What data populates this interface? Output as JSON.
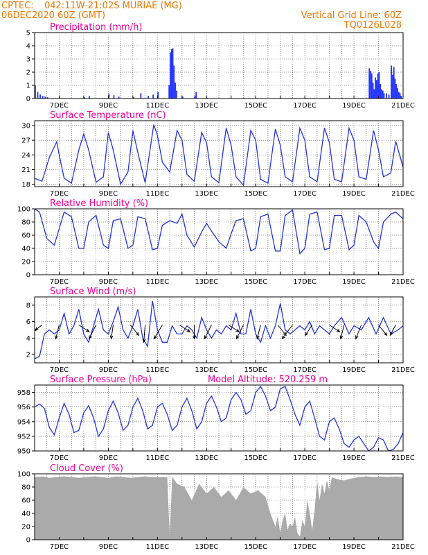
{
  "header": {
    "source": "CPTEC:",
    "location": "042:11W-21:02S   MURIAE (MG)",
    "init_time": "06DEC2020 60Z (GMT)",
    "grid_note": "Vertical Grid Line: 60Z",
    "model": "TQ0126L028"
  },
  "colors": {
    "header_text": "#ee7700",
    "panel_title": "#ee0099",
    "series_line": "#2233dd",
    "bar_fill": "#2233ff",
    "cloud_fill": "#aaaaaa",
    "wind_arrow": "#000000"
  },
  "x_tick_labels": [
    "7DEC",
    "9DEC",
    "11DEC",
    "13DEC",
    "15DEC",
    "17DEC",
    "19DEC",
    "21DEC"
  ],
  "chart_data": [
    {
      "id": "precip",
      "type": "bar",
      "title": "Precipitation  (mm/h)",
      "x_unit": "day of December 2020",
      "xlim": [
        6.0,
        21.0
      ],
      "ylim": [
        0,
        5
      ],
      "yticks": [
        0,
        1,
        2,
        3,
        4,
        5
      ],
      "grid": true,
      "x": [
        6.0,
        6.1,
        6.2,
        6.3,
        6.4,
        6.5,
        8.0,
        8.2,
        9.0,
        9.2,
        9.4,
        10.0,
        10.3,
        10.6,
        10.8,
        11.0,
        11.45,
        11.5,
        11.55,
        11.6,
        11.65,
        11.7,
        11.75,
        12.0,
        12.5,
        12.55,
        13.0,
        14.5,
        16.0,
        17.0,
        18.5,
        19.6,
        19.65,
        19.7,
        19.75,
        19.8,
        19.85,
        19.9,
        19.95,
        20.0,
        20.05,
        20.1,
        20.15,
        20.2,
        20.3,
        20.4,
        20.5,
        20.55,
        20.6,
        20.65,
        20.7,
        20.75,
        20.8,
        20.85,
        20.9
      ],
      "values": [
        1.0,
        0.5,
        0.3,
        0.2,
        0.15,
        0.1,
        0.1,
        0.2,
        0.35,
        0.25,
        0.15,
        0.1,
        0.4,
        0.2,
        0.3,
        0.5,
        1.0,
        3.5,
        3.75,
        3.8,
        2.5,
        1.2,
        0.6,
        0.15,
        0.2,
        0.5,
        0.05,
        0.05,
        0.05,
        0.05,
        0.05,
        2.3,
        2.1,
        1.9,
        1.2,
        0.7,
        1.6,
        1.4,
        1.9,
        2.0,
        1.1,
        0.7,
        0.6,
        0.4,
        0.4,
        0.3,
        2.5,
        1.8,
        2.4,
        1.5,
        1.1,
        0.8,
        0.5,
        0.4,
        0.2
      ]
    },
    {
      "id": "temperature",
      "type": "line",
      "title": "Surface Temperature (nC)",
      "x_unit": "day of December 2020",
      "xlim": [
        6.0,
        21.0
      ],
      "ylim": [
        17.5,
        31
      ],
      "yticks": [
        18,
        21,
        24,
        27,
        30
      ],
      "grid": true,
      "x": [
        6.0,
        6.3,
        6.6,
        6.9,
        7.0,
        7.2,
        7.5,
        7.8,
        8.0,
        8.2,
        8.5,
        8.8,
        9.0,
        9.2,
        9.5,
        9.8,
        10.0,
        10.2,
        10.5,
        10.85,
        11.0,
        11.2,
        11.5,
        11.8,
        12.0,
        12.2,
        12.5,
        12.8,
        13.0,
        13.2,
        13.5,
        13.8,
        14.0,
        14.2,
        14.5,
        14.8,
        15.0,
        15.2,
        15.5,
        15.8,
        16.0,
        16.2,
        16.5,
        16.8,
        17.0,
        17.2,
        17.5,
        17.8,
        18.0,
        18.2,
        18.5,
        18.8,
        19.0,
        19.2,
        19.5,
        19.8,
        20.0,
        20.2,
        20.5,
        20.7,
        21.0
      ],
      "values": [
        19.2,
        18.6,
        23.5,
        26.7,
        24,
        19.2,
        18.2,
        25,
        28.3,
        25,
        18.4,
        19.5,
        28.6,
        25,
        18,
        20.5,
        29,
        24.5,
        18.3,
        30.2,
        28,
        22.5,
        20.5,
        29,
        27,
        20,
        18.6,
        28.6,
        26.5,
        19.5,
        18.3,
        29.5,
        26,
        19.5,
        17.8,
        29,
        27,
        19,
        18.2,
        29.3,
        26,
        19.5,
        18.5,
        29.5,
        27,
        19.5,
        18.5,
        29.5,
        26.5,
        19,
        18.5,
        29.5,
        27,
        19.5,
        19,
        29,
        25,
        19.5,
        20.3,
        26.8,
        21.5
      ]
    },
    {
      "id": "humidity",
      "type": "line",
      "title": "Relative Humidity (%)",
      "x_unit": "day of December 2020",
      "xlim": [
        6.0,
        21.0
      ],
      "ylim": [
        0,
        100
      ],
      "yticks": [
        0,
        20,
        40,
        60,
        80,
        100
      ],
      "grid": true,
      "x": [
        6.0,
        6.2,
        6.5,
        6.8,
        7.0,
        7.2,
        7.5,
        7.8,
        8.0,
        8.2,
        8.5,
        8.8,
        9.0,
        9.2,
        9.5,
        9.8,
        10.0,
        10.2,
        10.5,
        10.8,
        11.0,
        11.2,
        11.5,
        11.8,
        12.0,
        12.2,
        12.5,
        12.8,
        13.0,
        13.2,
        13.5,
        13.8,
        14.0,
        14.2,
        14.5,
        14.8,
        15.0,
        15.2,
        15.5,
        15.8,
        16.0,
        16.2,
        16.5,
        16.8,
        17.0,
        17.2,
        17.5,
        17.8,
        18.0,
        18.2,
        18.5,
        18.8,
        19.0,
        19.2,
        19.5,
        19.8,
        20.0,
        20.2,
        20.5,
        20.7,
        21.0
      ],
      "values": [
        100,
        95,
        55,
        45,
        70,
        95,
        88,
        40,
        40,
        80,
        90,
        45,
        40,
        82,
        85,
        40,
        45,
        88,
        85,
        38,
        40,
        75,
        82,
        78,
        92,
        60,
        42,
        65,
        78,
        66,
        50,
        40,
        62,
        82,
        85,
        36,
        40,
        88,
        92,
        36,
        36,
        90,
        98,
        32,
        40,
        92,
        95,
        38,
        40,
        90,
        90,
        38,
        45,
        90,
        80,
        50,
        40,
        80,
        92,
        95,
        85
      ]
    },
    {
      "id": "wind",
      "type": "line",
      "title": "Surface Wind  (m/s)",
      "x_unit": "day of December 2020",
      "xlim": [
        6.0,
        21.0
      ],
      "ylim": [
        1,
        9
      ],
      "yticks": [
        2,
        4,
        6,
        8
      ],
      "grid": true,
      "x": [
        6.0,
        6.2,
        6.4,
        6.6,
        6.8,
        7.0,
        7.2,
        7.4,
        7.6,
        7.8,
        8.0,
        8.2,
        8.4,
        8.6,
        8.8,
        9.0,
        9.2,
        9.4,
        9.6,
        9.8,
        10.0,
        10.2,
        10.4,
        10.6,
        10.8,
        11.0,
        11.2,
        11.4,
        11.6,
        11.8,
        12.0,
        12.2,
        12.4,
        12.6,
        12.8,
        13.0,
        13.2,
        13.4,
        13.6,
        13.8,
        14.0,
        14.2,
        14.4,
        14.6,
        14.8,
        15.0,
        15.2,
        15.4,
        15.6,
        15.8,
        16.0,
        16.2,
        16.4,
        16.6,
        16.8,
        17.0,
        17.2,
        17.4,
        17.6,
        17.8,
        18.0,
        18.2,
        18.5,
        18.8,
        19.0,
        19.3,
        19.6,
        19.9,
        20.2,
        20.5,
        20.8,
        21.0
      ],
      "values": [
        1.5,
        1.8,
        4.5,
        5.0,
        4.5,
        5.0,
        7.0,
        4.5,
        5.5,
        7.5,
        4.5,
        3.5,
        5.5,
        7.5,
        5.0,
        4.5,
        6.0,
        7.8,
        5.0,
        4.0,
        5.5,
        7.5,
        4.0,
        3.0,
        8.5,
        5.0,
        3.5,
        3.5,
        5.5,
        4.5,
        4.5,
        5.5,
        5.0,
        4.0,
        6.5,
        5.0,
        4.0,
        5.0,
        4.5,
        5.5,
        5.0,
        7.0,
        4.5,
        4.5,
        7.5,
        4.5,
        3.5,
        5.5,
        4.0,
        5.5,
        8.2,
        5.0,
        4.5,
        5.0,
        5.5,
        5.0,
        6.0,
        4.5,
        5.5,
        5.0,
        4.5,
        5.5,
        6.5,
        4.5,
        5.5,
        5.0,
        6.5,
        4.5,
        6.5,
        4.5,
        5.0,
        5.5
      ],
      "arrows_x": [
        6.3,
        7.0,
        7.8,
        8.5,
        9.2,
        9.9,
        10.5,
        11.2,
        11.9,
        12.5,
        13.2,
        13.9,
        14.5,
        15.2,
        15.9,
        16.5,
        17.3,
        18.0,
        18.6,
        19.3,
        20.0,
        20.7
      ],
      "arrows_u": [
        -1.0,
        -0.5,
        1.5,
        -1.0,
        -0.3,
        1.2,
        -0.2,
        -1.2,
        1.5,
        0.0,
        -1.0,
        1.5,
        -1.0,
        -0.5,
        1.2,
        -1.5,
        -1.0,
        1.5,
        -0.5,
        -0.8,
        1.2,
        -0.8
      ],
      "arrows_v": [
        -0.8,
        -2.0,
        -1.0,
        -2.0,
        -2.0,
        -1.5,
        -2.5,
        -2.0,
        -1.0,
        -2.0,
        -2.0,
        -1.0,
        -2.0,
        -2.0,
        -1.5,
        -2.0,
        -1.5,
        -1.0,
        -2.0,
        -2.0,
        -1.5,
        -1.5
      ]
    },
    {
      "id": "pressure",
      "type": "line",
      "title": "Surface Pressure (hPa)",
      "annotation": "Model Altitude: 520.259  m",
      "x_unit": "day of December 2020",
      "xlim": [
        6.0,
        21.0
      ],
      "ylim": [
        950,
        959
      ],
      "yticks": [
        950,
        952,
        954,
        956,
        958
      ],
      "grid": true,
      "x": [
        6.0,
        6.2,
        6.4,
        6.6,
        6.8,
        7.0,
        7.2,
        7.4,
        7.6,
        7.8,
        8.0,
        8.2,
        8.4,
        8.6,
        8.8,
        9.0,
        9.2,
        9.4,
        9.6,
        9.8,
        10.0,
        10.2,
        10.4,
        10.6,
        10.8,
        11.0,
        11.2,
        11.4,
        11.6,
        11.8,
        12.0,
        12.2,
        12.4,
        12.6,
        12.8,
        13.0,
        13.2,
        13.4,
        13.6,
        13.8,
        14.0,
        14.2,
        14.4,
        14.6,
        14.8,
        15.0,
        15.2,
        15.4,
        15.6,
        15.8,
        16.0,
        16.2,
        16.4,
        16.6,
        16.8,
        17.0,
        17.2,
        17.4,
        17.6,
        17.8,
        18.0,
        18.2,
        18.4,
        18.6,
        18.8,
        19.0,
        19.2,
        19.4,
        19.6,
        19.8,
        20.0,
        20.2,
        20.4,
        20.6,
        20.8,
        21.0
      ],
      "values": [
        956,
        956.4,
        955.8,
        953.2,
        952.2,
        954.5,
        956.5,
        955.0,
        952.5,
        952.8,
        955.2,
        956.2,
        954.5,
        952.0,
        953.0,
        955.5,
        956.8,
        955.2,
        952.8,
        953.5,
        956.0,
        957.2,
        955.5,
        953.0,
        953.5,
        956.0,
        956.5,
        955.0,
        952.8,
        953.5,
        956.0,
        957.2,
        955.5,
        953.0,
        954.0,
        956.5,
        957.5,
        956.0,
        954.0,
        954.5,
        957.0,
        958.0,
        957.0,
        955.0,
        955.5,
        958.0,
        958.8,
        957.5,
        955.5,
        956.0,
        958.5,
        958.8,
        957.0,
        955.0,
        953.5,
        956.0,
        956.8,
        954.5,
        952.0,
        951.5,
        954.0,
        954.5,
        953.0,
        951.0,
        950.5,
        951.5,
        952.0,
        951.0,
        950.0,
        950.5,
        951.8,
        951.5,
        950.0,
        950.2,
        951.0,
        952.5
      ]
    },
    {
      "id": "cloud",
      "type": "area",
      "title": "Cloud Cover (%)",
      "x_unit": "day of December 2020",
      "xlim": [
        6.0,
        21.0
      ],
      "ylim": [
        0,
        100
      ],
      "yticks": [
        0,
        20,
        40,
        60,
        80,
        100
      ],
      "grid": true,
      "x": [
        6.0,
        6.3,
        6.6,
        6.9,
        7.2,
        7.5,
        7.8,
        8.1,
        8.4,
        8.7,
        9.0,
        9.3,
        9.6,
        9.9,
        10.2,
        10.5,
        10.8,
        11.1,
        11.4,
        11.5,
        11.6,
        11.7,
        11.8,
        12.1,
        12.4,
        12.7,
        13.0,
        13.3,
        13.6,
        13.9,
        14.2,
        14.5,
        14.8,
        15.1,
        15.4,
        15.6,
        15.8,
        15.9,
        16.0,
        16.1,
        16.2,
        16.3,
        16.4,
        16.5,
        16.6,
        16.7,
        16.8,
        16.9,
        17.0,
        17.1,
        17.2,
        17.3,
        17.4,
        17.5,
        17.6,
        17.7,
        17.8,
        17.9,
        18.0,
        18.1,
        18.3,
        18.6,
        18.9,
        19.2,
        19.5,
        19.8,
        20.1,
        20.4,
        20.7,
        21.0
      ],
      "values": [
        95,
        96,
        94,
        95,
        96,
        95,
        94,
        95,
        96,
        95,
        94,
        96,
        95,
        94,
        95,
        96,
        95,
        95,
        95,
        5,
        96,
        90,
        85,
        80,
        60,
        85,
        70,
        80,
        65,
        75,
        60,
        80,
        70,
        75,
        65,
        40,
        20,
        35,
        10,
        30,
        40,
        15,
        25,
        20,
        35,
        10,
        5,
        30,
        20,
        60,
        40,
        15,
        45,
        90,
        60,
        85,
        70,
        90,
        75,
        95,
        92,
        90,
        93,
        95,
        96,
        95,
        96,
        95,
        96,
        95
      ]
    }
  ]
}
